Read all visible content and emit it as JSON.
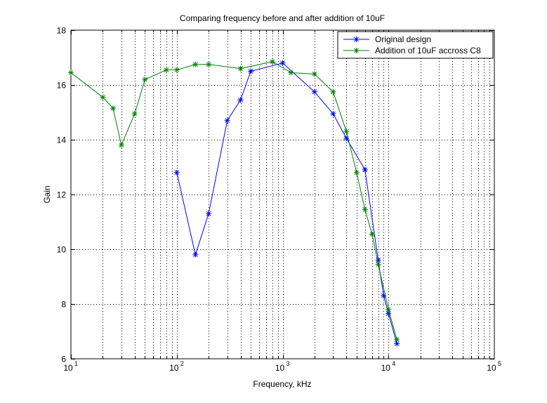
{
  "chart_data": {
    "type": "line",
    "title": "Comparing frequency before and after addition of 10uF",
    "xlabel": "Frequency, kHz",
    "ylabel": "Gain",
    "xscale": "log",
    "xlim": [
      10,
      100000
    ],
    "ylim": [
      6,
      18
    ],
    "grid": true,
    "legend_location": "top-right",
    "x_ticks": [
      {
        "base": "10",
        "exp": "1",
        "value": 10
      },
      {
        "base": "10",
        "exp": "2",
        "value": 100
      },
      {
        "base": "10",
        "exp": "3",
        "value": 1000
      },
      {
        "base": "10",
        "exp": "4",
        "value": 10000
      },
      {
        "base": "10",
        "exp": "5",
        "value": 100000
      }
    ],
    "y_ticks": [
      {
        "label": "6",
        "value": 6
      },
      {
        "label": "8",
        "value": 8
      },
      {
        "label": "10",
        "value": 10
      },
      {
        "label": "12",
        "value": 12
      },
      {
        "label": "14",
        "value": 14
      },
      {
        "label": "16",
        "value": 16
      },
      {
        "label": "18",
        "value": 18
      }
    ],
    "series": [
      {
        "name": "Original design",
        "color": "#0000ff",
        "marker": "*",
        "x": [
          100,
          150,
          200,
          300,
          400,
          500,
          1000,
          2000,
          3000,
          4000,
          6000,
          8000,
          9000,
          10000,
          12000
        ],
        "y": [
          12.8,
          9.8,
          11.3,
          14.7,
          15.45,
          16.5,
          16.8,
          15.75,
          14.95,
          14.05,
          12.9,
          9.6,
          8.3,
          7.65,
          6.55
        ]
      },
      {
        "name": "Addition of 10uF accross C8",
        "color": "#008000",
        "marker": "*",
        "x": [
          10,
          20,
          25,
          30,
          40,
          50,
          80,
          100,
          150,
          200,
          400,
          800,
          1200,
          2000,
          3000,
          4000,
          5000,
          6000,
          7000,
          8000,
          10000,
          12000
        ],
        "y": [
          16.45,
          15.55,
          15.15,
          13.8,
          14.95,
          16.2,
          16.55,
          16.55,
          16.75,
          16.75,
          16.6,
          16.85,
          16.45,
          16.4,
          15.75,
          14.3,
          12.8,
          11.45,
          10.55,
          9.45,
          7.8,
          6.7
        ]
      }
    ]
  }
}
